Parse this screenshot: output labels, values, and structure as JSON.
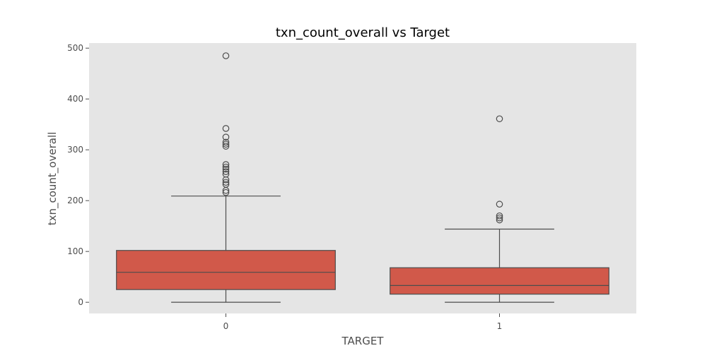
{
  "chart_data": {
    "type": "box",
    "title": "txn_count_overall vs Target",
    "xlabel": "TARGET",
    "ylabel": "txn_count_overall",
    "categories": [
      "0",
      "1"
    ],
    "ylim": [
      -22,
      510
    ],
    "yticks": [
      0,
      100,
      200,
      300,
      400,
      500
    ],
    "grid": false,
    "colors": {
      "plot_background": "#e5e5e5",
      "box_fill": "#d1594a",
      "line": "#4d4d4d"
    },
    "boxes": [
      {
        "category": "0",
        "whisker_low": 0,
        "q1": 25,
        "median": 59,
        "q3": 102,
        "whisker_high": 209,
        "outliers": [
          485,
          342,
          325,
          315,
          311,
          307,
          271,
          266,
          262,
          257,
          252,
          241,
          236,
          232,
          220,
          216
        ]
      },
      {
        "category": "1",
        "whisker_low": 0,
        "q1": 16,
        "median": 33,
        "q3": 68,
        "whisker_high": 144,
        "outliers": [
          361,
          193,
          170,
          166,
          162
        ]
      }
    ]
  }
}
